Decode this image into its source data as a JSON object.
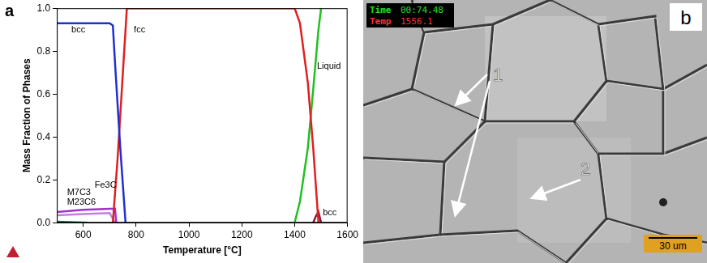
{
  "chart_data": {
    "type": "line",
    "panel": "a",
    "x_label": "Temperature [°C]",
    "y_label": "Mass Fraction of Phases",
    "xlim": [
      500,
      1600
    ],
    "xticks": [
      600,
      800,
      1000,
      1200,
      1400,
      1600
    ],
    "ylim": [
      0,
      1
    ],
    "yticks": [
      {
        "value": 0,
        "label": "0.0"
      },
      {
        "value": 0.2,
        "label": "0.2"
      },
      {
        "value": 0.4,
        "label": "0.4"
      },
      {
        "value": 0.6,
        "label": "0.6"
      },
      {
        "value": 0.8,
        "label": "0.8"
      },
      {
        "value": 1,
        "label": "1.0"
      }
    ],
    "grid": false,
    "series": [
      {
        "name": "bcc",
        "color": "#2030d0",
        "x": [
          500,
          600,
          700,
          712,
          720,
          740,
          760
        ],
        "values": [
          0.93,
          0.93,
          0.93,
          0.92,
          0.75,
          0.35,
          0
        ]
      },
      {
        "name": "fcc",
        "color": "#e02020",
        "x": [
          712,
          730,
          750,
          765,
          1400,
          1420,
          1450,
          1470,
          1490
        ],
        "values": [
          0,
          0.3,
          0.7,
          1,
          1,
          0.93,
          0.65,
          0.35,
          0
        ]
      },
      {
        "name": "Liquid",
        "color": "#20c020",
        "x": [
          1400,
          1420,
          1450,
          1470,
          1490,
          1500
        ],
        "values": [
          0,
          0.1,
          0.35,
          0.62,
          0.9,
          1
        ]
      },
      {
        "name": "bcc",
        "color": "#8b1a3a",
        "x": [
          1470,
          1480,
          1490,
          1500
        ],
        "values": [
          0,
          0.03,
          0.05,
          0
        ]
      },
      {
        "name": "Fe3C",
        "color": "#a030d0",
        "x": [
          500,
          600,
          700,
          720,
          725
        ],
        "values": [
          0.05,
          0.06,
          0.065,
          0.065,
          0
        ]
      },
      {
        "name": "M23C6",
        "color": "#c080e0",
        "x": [
          500,
          600,
          700,
          720
        ],
        "values": [
          0.035,
          0.04,
          0.045,
          0
        ]
      },
      {
        "name": "M7C3",
        "color": "#207050",
        "x": [
          500,
          550,
          600,
          620
        ],
        "values": [
          0.005,
          0.003,
          0.001,
          0
        ]
      }
    ]
  },
  "micrograph": {
    "panel": "b",
    "time_label": "Time",
    "time": "00:74.48",
    "temp_label": "Temp",
    "temp": "1556.1",
    "arrow_labels": [
      "1",
      "2"
    ],
    "scale_bar": "30 um"
  }
}
